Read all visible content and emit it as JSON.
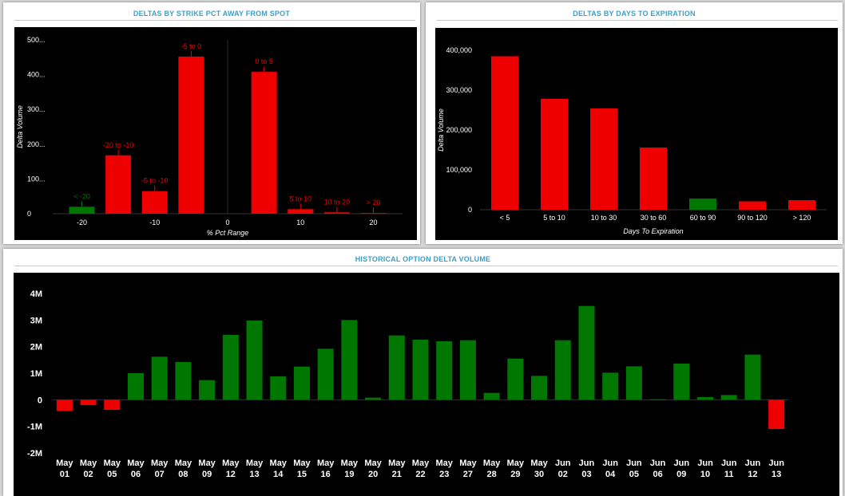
{
  "panels": {
    "strike": {
      "title": "DELTAS BY STRIKE PCT AWAY FROM SPOT"
    },
    "days": {
      "title": "DELTAS BY DAYS TO EXPIRATION"
    },
    "history": {
      "title": "HISTORICAL OPTION DELTA VOLUME"
    }
  },
  "colors": {
    "positive": "#007700",
    "negative": "#ee0000",
    "title": "#3f9ec6",
    "background": "#000000"
  },
  "chart_data": [
    {
      "type": "bar",
      "title": "DELTAS BY STRIKE PCT AWAY FROM SPOT",
      "xlabel": "% Pct Range",
      "ylabel": "Delta Volume",
      "xlim": [
        -24,
        24
      ],
      "ylim": [
        0,
        500
      ],
      "xticks": [
        -20,
        -10,
        0,
        10,
        20
      ],
      "xtick_labels": [
        "-20",
        "-10",
        "0",
        "10",
        "20"
      ],
      "yticks": [
        0,
        100,
        200,
        300,
        400,
        500
      ],
      "ytick_labels": [
        "0",
        "100...",
        "200...",
        "300...",
        "400...",
        "500..."
      ],
      "series": [
        {
          "values": [
            {
              "label": "< -20",
              "x": -20,
              "value": 20,
              "color": "#007700"
            },
            {
              "label": "-20 to -10",
              "x": -15,
              "value": 168,
              "color": "#ee0000"
            },
            {
              "label": "-5 to -10",
              "x": -10,
              "value": 65,
              "color": "#ee0000"
            },
            {
              "label": "-5 to 0",
              "x": -5,
              "value": 452,
              "color": "#ee0000"
            },
            {
              "label": "0 to 5",
              "x": 5,
              "value": 408,
              "color": "#ee0000"
            },
            {
              "label": "5 to 10",
              "x": 10,
              "value": 13,
              "color": "#ee0000"
            },
            {
              "label": "10 to 20",
              "x": 15,
              "value": 4,
              "color": "#ee0000"
            },
            {
              "label": "> 20",
              "x": 20,
              "value": 2,
              "color": "#ee0000"
            }
          ]
        }
      ],
      "grid": false
    },
    {
      "type": "bar",
      "title": "DELTAS BY DAYS TO EXPIRATION",
      "xlabel": "Days To Expiration",
      "ylabel": "Delta Volume",
      "categories": [
        "< 5",
        "5 to 10",
        "10 to 30",
        "30 to 60",
        "60 to 90",
        "90 to 120",
        "> 120"
      ],
      "values": [
        385000,
        278000,
        254000,
        156000,
        28000,
        21000,
        24000
      ],
      "colors": [
        "#ee0000",
        "#ee0000",
        "#ee0000",
        "#ee0000",
        "#007700",
        "#ee0000",
        "#ee0000"
      ],
      "ylim": [
        0,
        400000
      ],
      "yticks": [
        0,
        100000,
        200000,
        300000,
        400000
      ],
      "ytick_labels": [
        "0",
        "100,000",
        "200,000",
        "300,000",
        "400,000"
      ],
      "grid": false
    },
    {
      "type": "bar",
      "title": "HISTORICAL OPTION DELTA VOLUME",
      "categories": [
        [
          "May",
          "01"
        ],
        [
          "May",
          "02"
        ],
        [
          "May",
          "05"
        ],
        [
          "May",
          "06"
        ],
        [
          "May",
          "07"
        ],
        [
          "May",
          "08"
        ],
        [
          "May",
          "09"
        ],
        [
          "May",
          "12"
        ],
        [
          "May",
          "13"
        ],
        [
          "May",
          "14"
        ],
        [
          "May",
          "15"
        ],
        [
          "May",
          "16"
        ],
        [
          "May",
          "19"
        ],
        [
          "May",
          "20"
        ],
        [
          "May",
          "21"
        ],
        [
          "May",
          "22"
        ],
        [
          "May",
          "23"
        ],
        [
          "May",
          "27"
        ],
        [
          "May",
          "28"
        ],
        [
          "May",
          "29"
        ],
        [
          "May",
          "30"
        ],
        [
          "Jun",
          "02"
        ],
        [
          "Jun",
          "03"
        ],
        [
          "Jun",
          "04"
        ],
        [
          "Jun",
          "05"
        ],
        [
          "Jun",
          "06"
        ],
        [
          "Jun",
          "09"
        ],
        [
          "Jun",
          "10"
        ],
        [
          "Jun",
          "11"
        ],
        [
          "Jun",
          "12"
        ],
        [
          "Jun",
          "13"
        ]
      ],
      "values": [
        -0.42,
        -0.2,
        -0.38,
        1.0,
        1.62,
        1.42,
        0.74,
        2.44,
        2.98,
        0.88,
        1.25,
        1.92,
        3.0,
        0.08,
        2.42,
        2.26,
        2.2,
        2.24,
        0.26,
        1.55,
        0.9,
        2.24,
        3.53,
        1.02,
        1.26,
        0.02,
        1.36,
        0.1,
        0.18,
        1.7,
        -1.1
      ],
      "value_unit": "M",
      "ylim": [
        -2,
        4
      ],
      "yticks": [
        -2,
        -1,
        0,
        1,
        2,
        3,
        4
      ],
      "ytick_labels": [
        "-2M",
        "-1M",
        "0",
        "1M",
        "2M",
        "3M",
        "4M"
      ],
      "grid": false
    }
  ]
}
